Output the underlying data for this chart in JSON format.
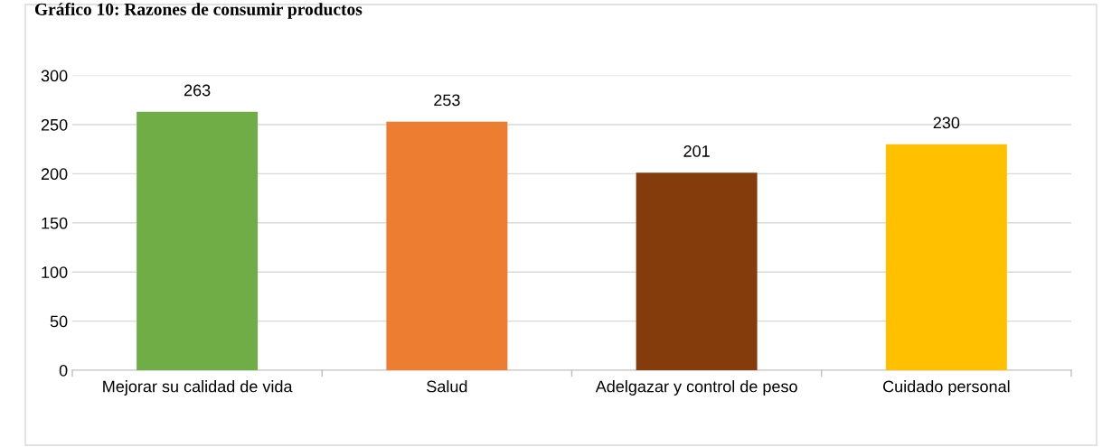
{
  "chart_data": {
    "type": "bar",
    "title": "Gráfico 10: Razones de consumir productos",
    "categories": [
      "Mejorar su calidad de vida",
      "Salud",
      "Adelgazar y control de peso",
      "Cuidado personal"
    ],
    "values": [
      263,
      253,
      201,
      230
    ],
    "colors": [
      "#70ad47",
      "#ed7d31",
      "#843c0c",
      "#ffc000"
    ],
    "ylim": [
      0,
      300
    ],
    "yticks": [
      0,
      50,
      100,
      150,
      200,
      250,
      300
    ],
    "grid": "y",
    "data_labels": true
  }
}
